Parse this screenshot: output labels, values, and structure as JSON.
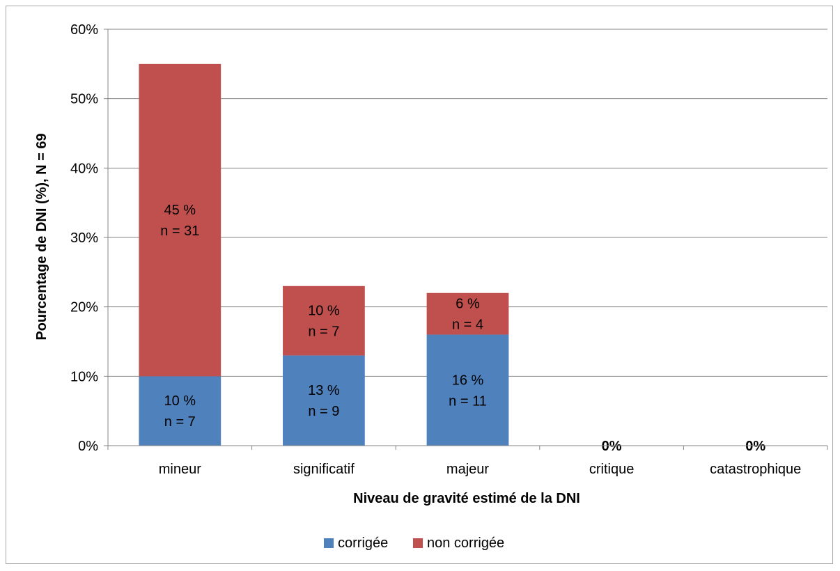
{
  "chart_data": {
    "type": "bar",
    "stacked": true,
    "categories": [
      "mineur",
      "significatif",
      "majeur",
      "critique",
      "catastrophique"
    ],
    "series": [
      {
        "name": "corrigée",
        "values": [
          10,
          13,
          16,
          0,
          0
        ],
        "labels": [
          "10 %\nn = 7",
          "13 %\nn = 9",
          "16 %\nn = 11",
          "",
          ""
        ],
        "color": "#4f81bd"
      },
      {
        "name": "non corrigée",
        "values": [
          45,
          10,
          6,
          0,
          0
        ],
        "labels": [
          "45 %\nn = 31",
          "10 %\nn = 7",
          "6 %\nn = 4",
          "0%",
          "0%"
        ],
        "color": "#c0504d"
      }
    ],
    "xlabel": "Niveau de gravité estimé de la DNI",
    "ylabel": "Pourcentage de DNI (%), N = 69",
    "ylim": [
      0,
      60
    ],
    "yticks": [
      0,
      10,
      20,
      30,
      40,
      50,
      60
    ],
    "ytick_labels": [
      "0%",
      "10%",
      "20%",
      "30%",
      "40%",
      "50%",
      "60%"
    ],
    "grid": true,
    "legend": "bottom"
  }
}
